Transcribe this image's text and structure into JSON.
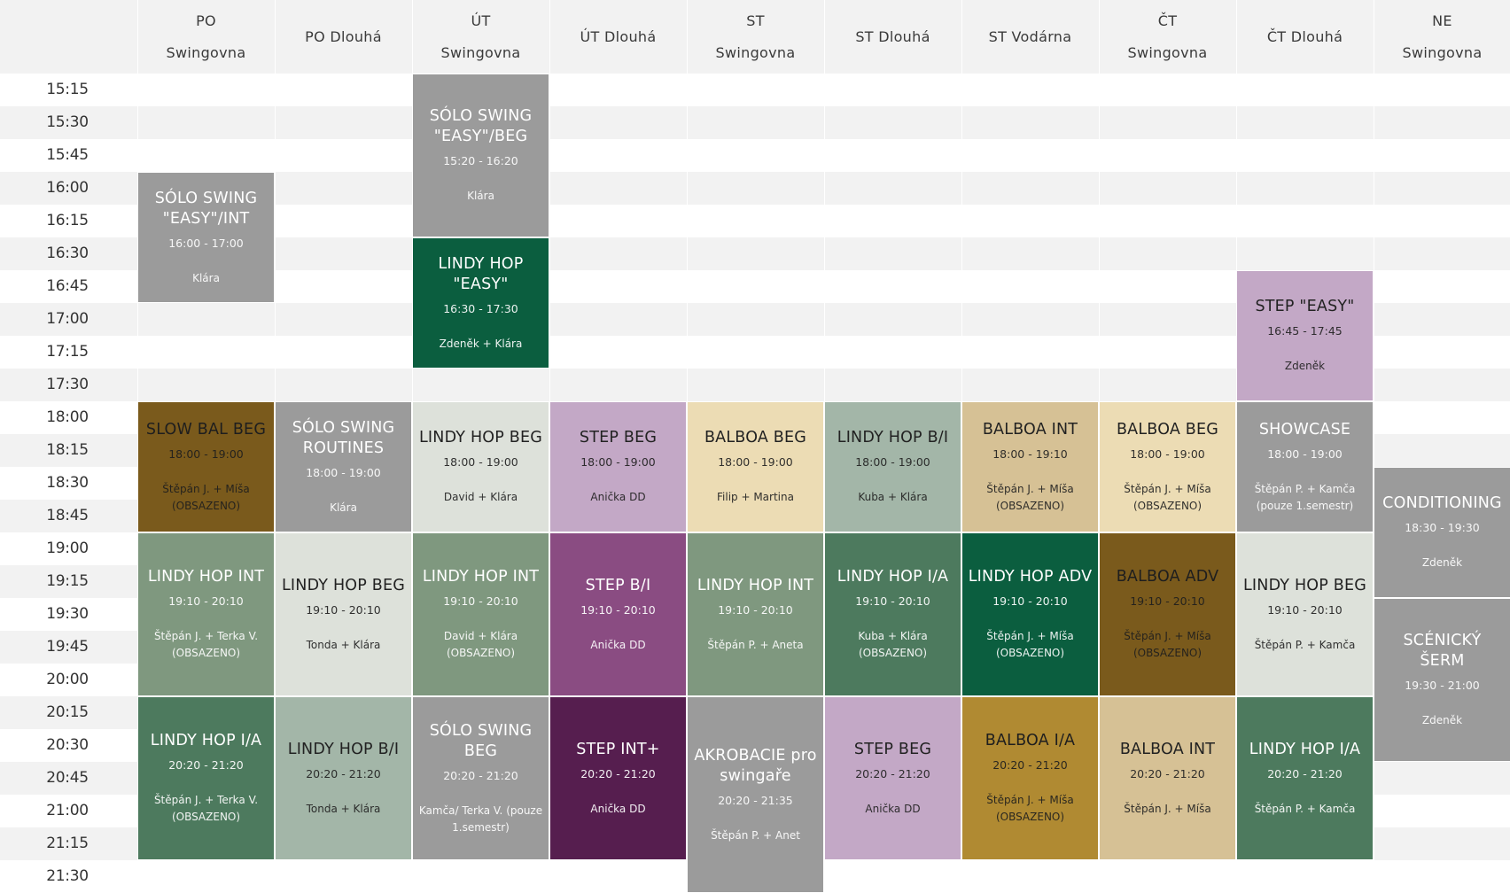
{
  "headers": [
    {
      "line1": "PO",
      "line2": "Swingovna"
    },
    {
      "line1": "PO Dlouhá",
      "line2": ""
    },
    {
      "line1": "ÚT",
      "line2": "Swingovna"
    },
    {
      "line1": "ÚT Dlouhá",
      "line2": ""
    },
    {
      "line1": "ST",
      "line2": "Swingovna"
    },
    {
      "line1": "ST Dlouhá",
      "line2": ""
    },
    {
      "line1": "ST Vodárna",
      "line2": ""
    },
    {
      "line1": "ČT",
      "line2": "Swingovna"
    },
    {
      "line1": "ČT Dlouhá",
      "line2": ""
    },
    {
      "line1": "NE",
      "line2": "Swingovna"
    }
  ],
  "times": [
    "15:15",
    "15:30",
    "15:45",
    "16:00",
    "16:15",
    "16:30",
    "16:45",
    "17:00",
    "17:15",
    "17:30",
    "18:00",
    "18:15",
    "18:30",
    "18:45",
    "19:00",
    "19:15",
    "19:30",
    "19:45",
    "20:00",
    "20:15",
    "20:30",
    "20:45",
    "21:00",
    "21:15",
    "21:30"
  ],
  "events": [
    {
      "col": 0,
      "start_slot": 3,
      "end_slot": 7,
      "title": "SÓLO SWING \"EASY\"/INT",
      "time": "16:00 - 17:00",
      "teacher": "Klára",
      "bg": "#9b9b9b",
      "text": "#ffffff"
    },
    {
      "col": 2,
      "start_slot": 0,
      "end_slot": 5,
      "title": "SÓLO SWING \"EASY\"/BEG",
      "time": "15:20 - 16:20",
      "teacher": "Klára",
      "bg": "#9b9b9b",
      "text": "#ffffff"
    },
    {
      "col": 2,
      "start_slot": 5,
      "end_slot": 9,
      "title": "LINDY HOP \"EASY\"",
      "time": "16:30 - 17:30",
      "teacher": "Zdeněk + Klára",
      "bg": "#0b5e3f",
      "text": "#ffffff"
    },
    {
      "col": 8,
      "start_slot": 6,
      "end_slot": 10,
      "title": "STEP \"EASY\"",
      "time": "16:45 - 17:45",
      "teacher": "Zdeněk",
      "bg": "#c3a8c6",
      "text": "#222222"
    },
    {
      "col": 0,
      "start_slot": 10,
      "end_slot": 14,
      "title": "SLOW BAL BEG",
      "time": "18:00 - 19:00",
      "teacher": "Štěpán J. + Míša (OBSAZENO)",
      "bg": "#7a5a1c",
      "text": "#1e1e1e"
    },
    {
      "col": 1,
      "start_slot": 10,
      "end_slot": 14,
      "title": "SÓLO SWING ROUTINES",
      "time": "18:00 - 19:00",
      "teacher": "Klára",
      "bg": "#9b9b9b",
      "text": "#ffffff"
    },
    {
      "col": 2,
      "start_slot": 10,
      "end_slot": 14,
      "title": "LINDY HOP BEG",
      "time": "18:00 - 19:00",
      "teacher": "David + Klára",
      "bg": "#dde1da",
      "text": "#222222"
    },
    {
      "col": 3,
      "start_slot": 10,
      "end_slot": 14,
      "title": "STEP BEG",
      "time": "18:00 - 19:00",
      "teacher": "Anička DD",
      "bg": "#c3a8c6",
      "text": "#222222"
    },
    {
      "col": 4,
      "start_slot": 10,
      "end_slot": 14,
      "title": "BALBOA BEG",
      "time": "18:00 - 19:00",
      "teacher": "Filip + Martina",
      "bg": "#ecdcb4",
      "text": "#222222"
    },
    {
      "col": 5,
      "start_slot": 10,
      "end_slot": 14,
      "title": "LINDY HOP B/I",
      "time": "18:00 - 19:00",
      "teacher": "Kuba + Klára",
      "bg": "#a3b6a8",
      "text": "#222222"
    },
    {
      "col": 6,
      "start_slot": 10,
      "end_slot": 14,
      "title": "BALBOA INT",
      "time": "18:00 - 19:10",
      "teacher": "Štěpán J. + Míša (OBSAZENO)",
      "bg": "#d6c195",
      "text": "#222222"
    },
    {
      "col": 7,
      "start_slot": 10,
      "end_slot": 14,
      "title": "BALBOA BEG",
      "time": "18:00 - 19:00",
      "teacher": "Štěpán J. + Míša (OBSAZENO)",
      "bg": "#ecdcb4",
      "text": "#222222"
    },
    {
      "col": 8,
      "start_slot": 10,
      "end_slot": 14,
      "title": "SHOWCASE",
      "time": "18:00 - 19:00",
      "teacher": "Štěpán P. + Kamča (pouze 1.semestr)",
      "bg": "#9b9b9b",
      "text": "#ffffff"
    },
    {
      "col": 9,
      "start_slot": 12,
      "end_slot": 16,
      "title": "CONDITIONING",
      "time": "18:30 - 19:30",
      "teacher": "Zdeněk",
      "bg": "#9b9b9b",
      "text": "#ffffff"
    },
    {
      "col": 0,
      "start_slot": 14,
      "end_slot": 19,
      "title": "LINDY HOP INT",
      "time": "19:10 - 20:10",
      "teacher": "Štěpán J. + Terka V. (OBSAZENO)",
      "bg": "#7f987f",
      "text": "#ffffff"
    },
    {
      "col": 1,
      "start_slot": 14,
      "end_slot": 19,
      "title": "LINDY HOP BEG",
      "time": "19:10 - 20:10",
      "teacher": "Tonda + Klára",
      "bg": "#dde1da",
      "text": "#222222"
    },
    {
      "col": 2,
      "start_slot": 14,
      "end_slot": 19,
      "title": "LINDY HOP INT",
      "time": "19:10 - 20:10",
      "teacher": "David + Klára (OBSAZENO)",
      "bg": "#7f987f",
      "text": "#ffffff"
    },
    {
      "col": 3,
      "start_slot": 14,
      "end_slot": 19,
      "title": "STEP B/I",
      "time": "19:10 - 20:10",
      "teacher": "Anička DD",
      "bg": "#8a4c82",
      "text": "#ffffff"
    },
    {
      "col": 4,
      "start_slot": 14,
      "end_slot": 19,
      "title": "LINDY HOP INT",
      "time": "19:10 - 20:10",
      "teacher": "Štěpán P. + Aneta",
      "bg": "#7f987f",
      "text": "#ffffff"
    },
    {
      "col": 5,
      "start_slot": 14,
      "end_slot": 19,
      "title": "LINDY HOP I/A",
      "time": "19:10 - 20:10",
      "teacher": "Kuba + Klára (OBSAZENO)",
      "bg": "#4d7a5e",
      "text": "#ffffff"
    },
    {
      "col": 6,
      "start_slot": 14,
      "end_slot": 19,
      "title": "LINDY HOP ADV",
      "time": "19:10 - 20:10",
      "teacher": "Štěpán J. + Míša (OBSAZENO)",
      "bg": "#0b5e3f",
      "text": "#ffffff"
    },
    {
      "col": 7,
      "start_slot": 14,
      "end_slot": 19,
      "title": "BALBOA ADV",
      "time": "19:10 - 20:10",
      "teacher": "Štěpán J. + Míša (OBSAZENO)",
      "bg": "#7a5a1c",
      "text": "#1e1e1e"
    },
    {
      "col": 8,
      "start_slot": 14,
      "end_slot": 19,
      "title": "LINDY HOP BEG",
      "time": "19:10 - 20:10",
      "teacher": "Štěpán P. + Kamča",
      "bg": "#dde1da",
      "text": "#222222"
    },
    {
      "col": 9,
      "start_slot": 16,
      "end_slot": 21,
      "title": "SCÉNICKÝ ŠERM",
      "time": "19:30 - 21:00",
      "teacher": "Zdeněk",
      "bg": "#9b9b9b",
      "text": "#ffffff"
    },
    {
      "col": 0,
      "start_slot": 19,
      "end_slot": 24,
      "title": "LINDY HOP I/A",
      "time": "20:20 - 21:20",
      "teacher": "Štěpán J. + Terka V. (OBSAZENO)",
      "bg": "#4d7a5e",
      "text": "#ffffff"
    },
    {
      "col": 1,
      "start_slot": 19,
      "end_slot": 24,
      "title": "LINDY HOP B/I",
      "time": "20:20 - 21:20",
      "teacher": "Tonda + Klára",
      "bg": "#a3b6a8",
      "text": "#222222"
    },
    {
      "col": 2,
      "start_slot": 19,
      "end_slot": 24,
      "title": "SÓLO SWING BEG",
      "time": "20:20 - 21:20",
      "teacher": "Kamča/ Terka V. (pouze 1.semestr)",
      "bg": "#9b9b9b",
      "text": "#ffffff"
    },
    {
      "col": 3,
      "start_slot": 19,
      "end_slot": 24,
      "title": "STEP INT+",
      "time": "20:20 - 21:20",
      "teacher": "Anička DD",
      "bg": "#561e4f",
      "text": "#ffffff"
    },
    {
      "col": 4,
      "start_slot": 19,
      "end_slot": 25,
      "title": "AKROBACIE pro swingaře",
      "time": "20:20 - 21:35",
      "teacher": "Štěpán P. + Anet",
      "bg": "#9b9b9b",
      "text": "#ffffff"
    },
    {
      "col": 5,
      "start_slot": 19,
      "end_slot": 24,
      "title": "STEP BEG",
      "time": "20:20 - 21:20",
      "teacher": "Anička DD",
      "bg": "#c3a8c6",
      "text": "#222222"
    },
    {
      "col": 6,
      "start_slot": 19,
      "end_slot": 24,
      "title": "BALBOA I/A",
      "time": "20:20 - 21:20",
      "teacher": "Štěpán J. + Míša (OBSAZENO)",
      "bg": "#b08a32",
      "text": "#1e1e1e"
    },
    {
      "col": 7,
      "start_slot": 19,
      "end_slot": 24,
      "title": "BALBOA INT",
      "time": "20:20 - 21:20",
      "teacher": "Štěpán J. + Míša",
      "bg": "#d6c195",
      "text": "#222222"
    },
    {
      "col": 8,
      "start_slot": 19,
      "end_slot": 24,
      "title": "LINDY HOP I/A",
      "time": "20:20 - 21:20",
      "teacher": "Štěpán P. + Kamča",
      "bg": "#4d7a5e",
      "text": "#ffffff"
    }
  ]
}
